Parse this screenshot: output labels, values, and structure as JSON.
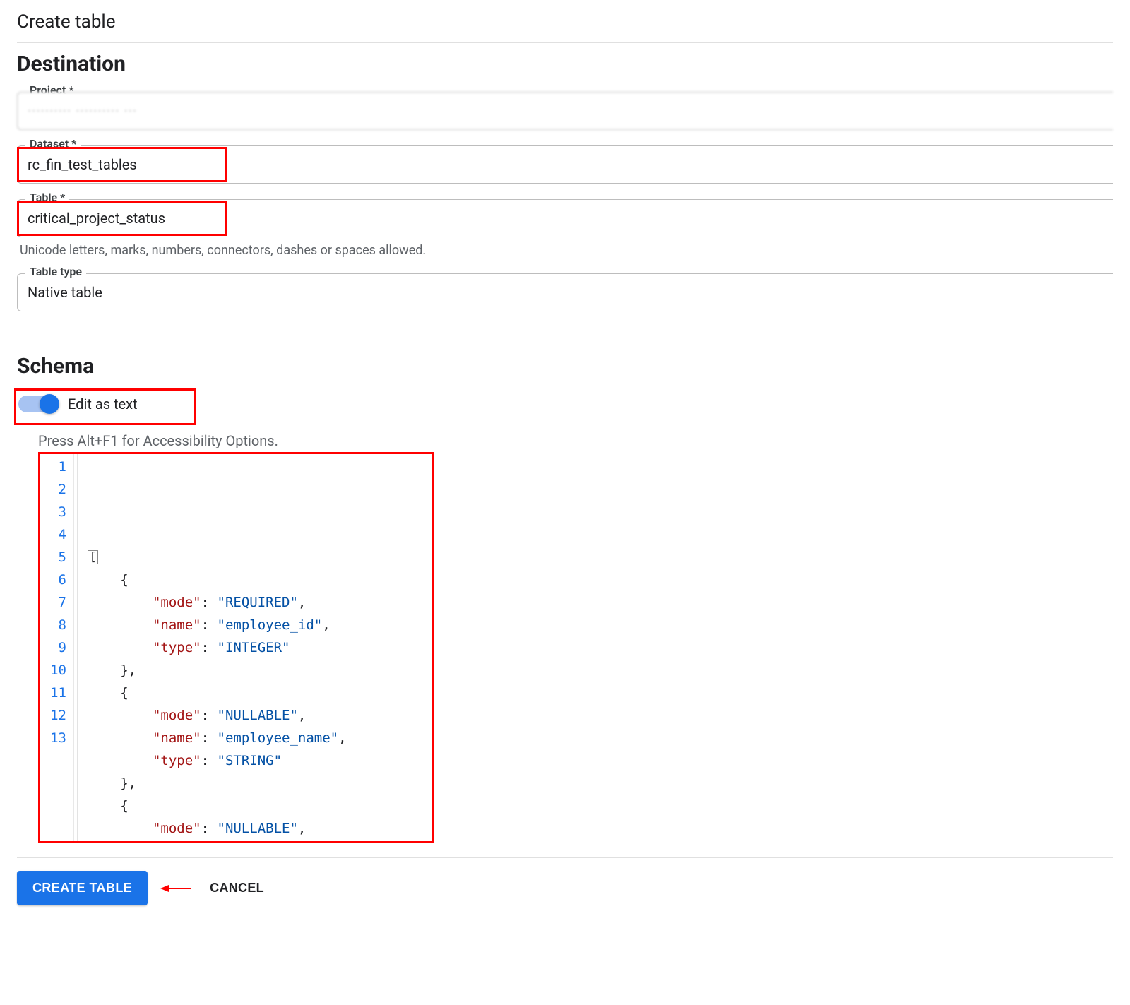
{
  "page": {
    "title": "Create table"
  },
  "destination": {
    "heading": "Destination",
    "project": {
      "label": "Project *",
      "value": "·········· ·········· ···"
    },
    "dataset": {
      "label": "Dataset *",
      "value": "rc_fin_test_tables"
    },
    "table": {
      "label": "Table *",
      "value": "critical_project_status",
      "helper": "Unicode letters, marks, numbers, connectors, dashes or spaces allowed."
    },
    "table_type": {
      "label": "Table type",
      "value": "Native table"
    }
  },
  "schema": {
    "heading": "Schema",
    "toggle_label": "Edit as text",
    "toggle_on": true,
    "accessibility_hint": "Press Alt+F1 for Accessibility Options.",
    "code_lines": [
      {
        "n": 1,
        "indent": 0,
        "tokens": [
          {
            "t": "cursor",
            "v": "["
          }
        ]
      },
      {
        "n": 2,
        "indent": 1,
        "tokens": [
          {
            "t": "punc",
            "v": "{"
          }
        ]
      },
      {
        "n": 3,
        "indent": 2,
        "tokens": [
          {
            "t": "key",
            "v": "\"mode\""
          },
          {
            "t": "punc",
            "v": ": "
          },
          {
            "t": "str",
            "v": "\"REQUIRED\""
          },
          {
            "t": "punc",
            "v": ","
          }
        ]
      },
      {
        "n": 4,
        "indent": 2,
        "tokens": [
          {
            "t": "key",
            "v": "\"name\""
          },
          {
            "t": "punc",
            "v": ": "
          },
          {
            "t": "str",
            "v": "\"employee_id\""
          },
          {
            "t": "punc",
            "v": ","
          }
        ]
      },
      {
        "n": 5,
        "indent": 2,
        "tokens": [
          {
            "t": "key",
            "v": "\"type\""
          },
          {
            "t": "punc",
            "v": ": "
          },
          {
            "t": "str",
            "v": "\"INTEGER\""
          }
        ]
      },
      {
        "n": 6,
        "indent": 1,
        "tokens": [
          {
            "t": "punc",
            "v": "},"
          }
        ]
      },
      {
        "n": 7,
        "indent": 1,
        "tokens": [
          {
            "t": "punc",
            "v": "{"
          }
        ]
      },
      {
        "n": 8,
        "indent": 2,
        "tokens": [
          {
            "t": "key",
            "v": "\"mode\""
          },
          {
            "t": "punc",
            "v": ": "
          },
          {
            "t": "str",
            "v": "\"NULLABLE\""
          },
          {
            "t": "punc",
            "v": ","
          }
        ]
      },
      {
        "n": 9,
        "indent": 2,
        "tokens": [
          {
            "t": "key",
            "v": "\"name\""
          },
          {
            "t": "punc",
            "v": ": "
          },
          {
            "t": "str",
            "v": "\"employee_name\""
          },
          {
            "t": "punc",
            "v": ","
          }
        ]
      },
      {
        "n": 10,
        "indent": 2,
        "tokens": [
          {
            "t": "key",
            "v": "\"type\""
          },
          {
            "t": "punc",
            "v": ": "
          },
          {
            "t": "str",
            "v": "\"STRING\""
          }
        ]
      },
      {
        "n": 11,
        "indent": 1,
        "tokens": [
          {
            "t": "punc",
            "v": "},"
          }
        ]
      },
      {
        "n": 12,
        "indent": 1,
        "tokens": [
          {
            "t": "punc",
            "v": "{"
          }
        ]
      },
      {
        "n": 13,
        "indent": 2,
        "tokens": [
          {
            "t": "key",
            "v": "\"mode\""
          },
          {
            "t": "punc",
            "v": ": "
          },
          {
            "t": "str",
            "v": "\"NULLABLE\""
          },
          {
            "t": "punc",
            "v": ","
          }
        ]
      }
    ]
  },
  "footer": {
    "create_label": "CREATE TABLE",
    "cancel_label": "CANCEL"
  },
  "colors": {
    "primary": "#1a73e8",
    "highlight_border": "#ff0000",
    "key_token": "#a31515",
    "string_token": "#0451a5",
    "muted_text": "#5f6368",
    "border": "#bdbdbd"
  }
}
